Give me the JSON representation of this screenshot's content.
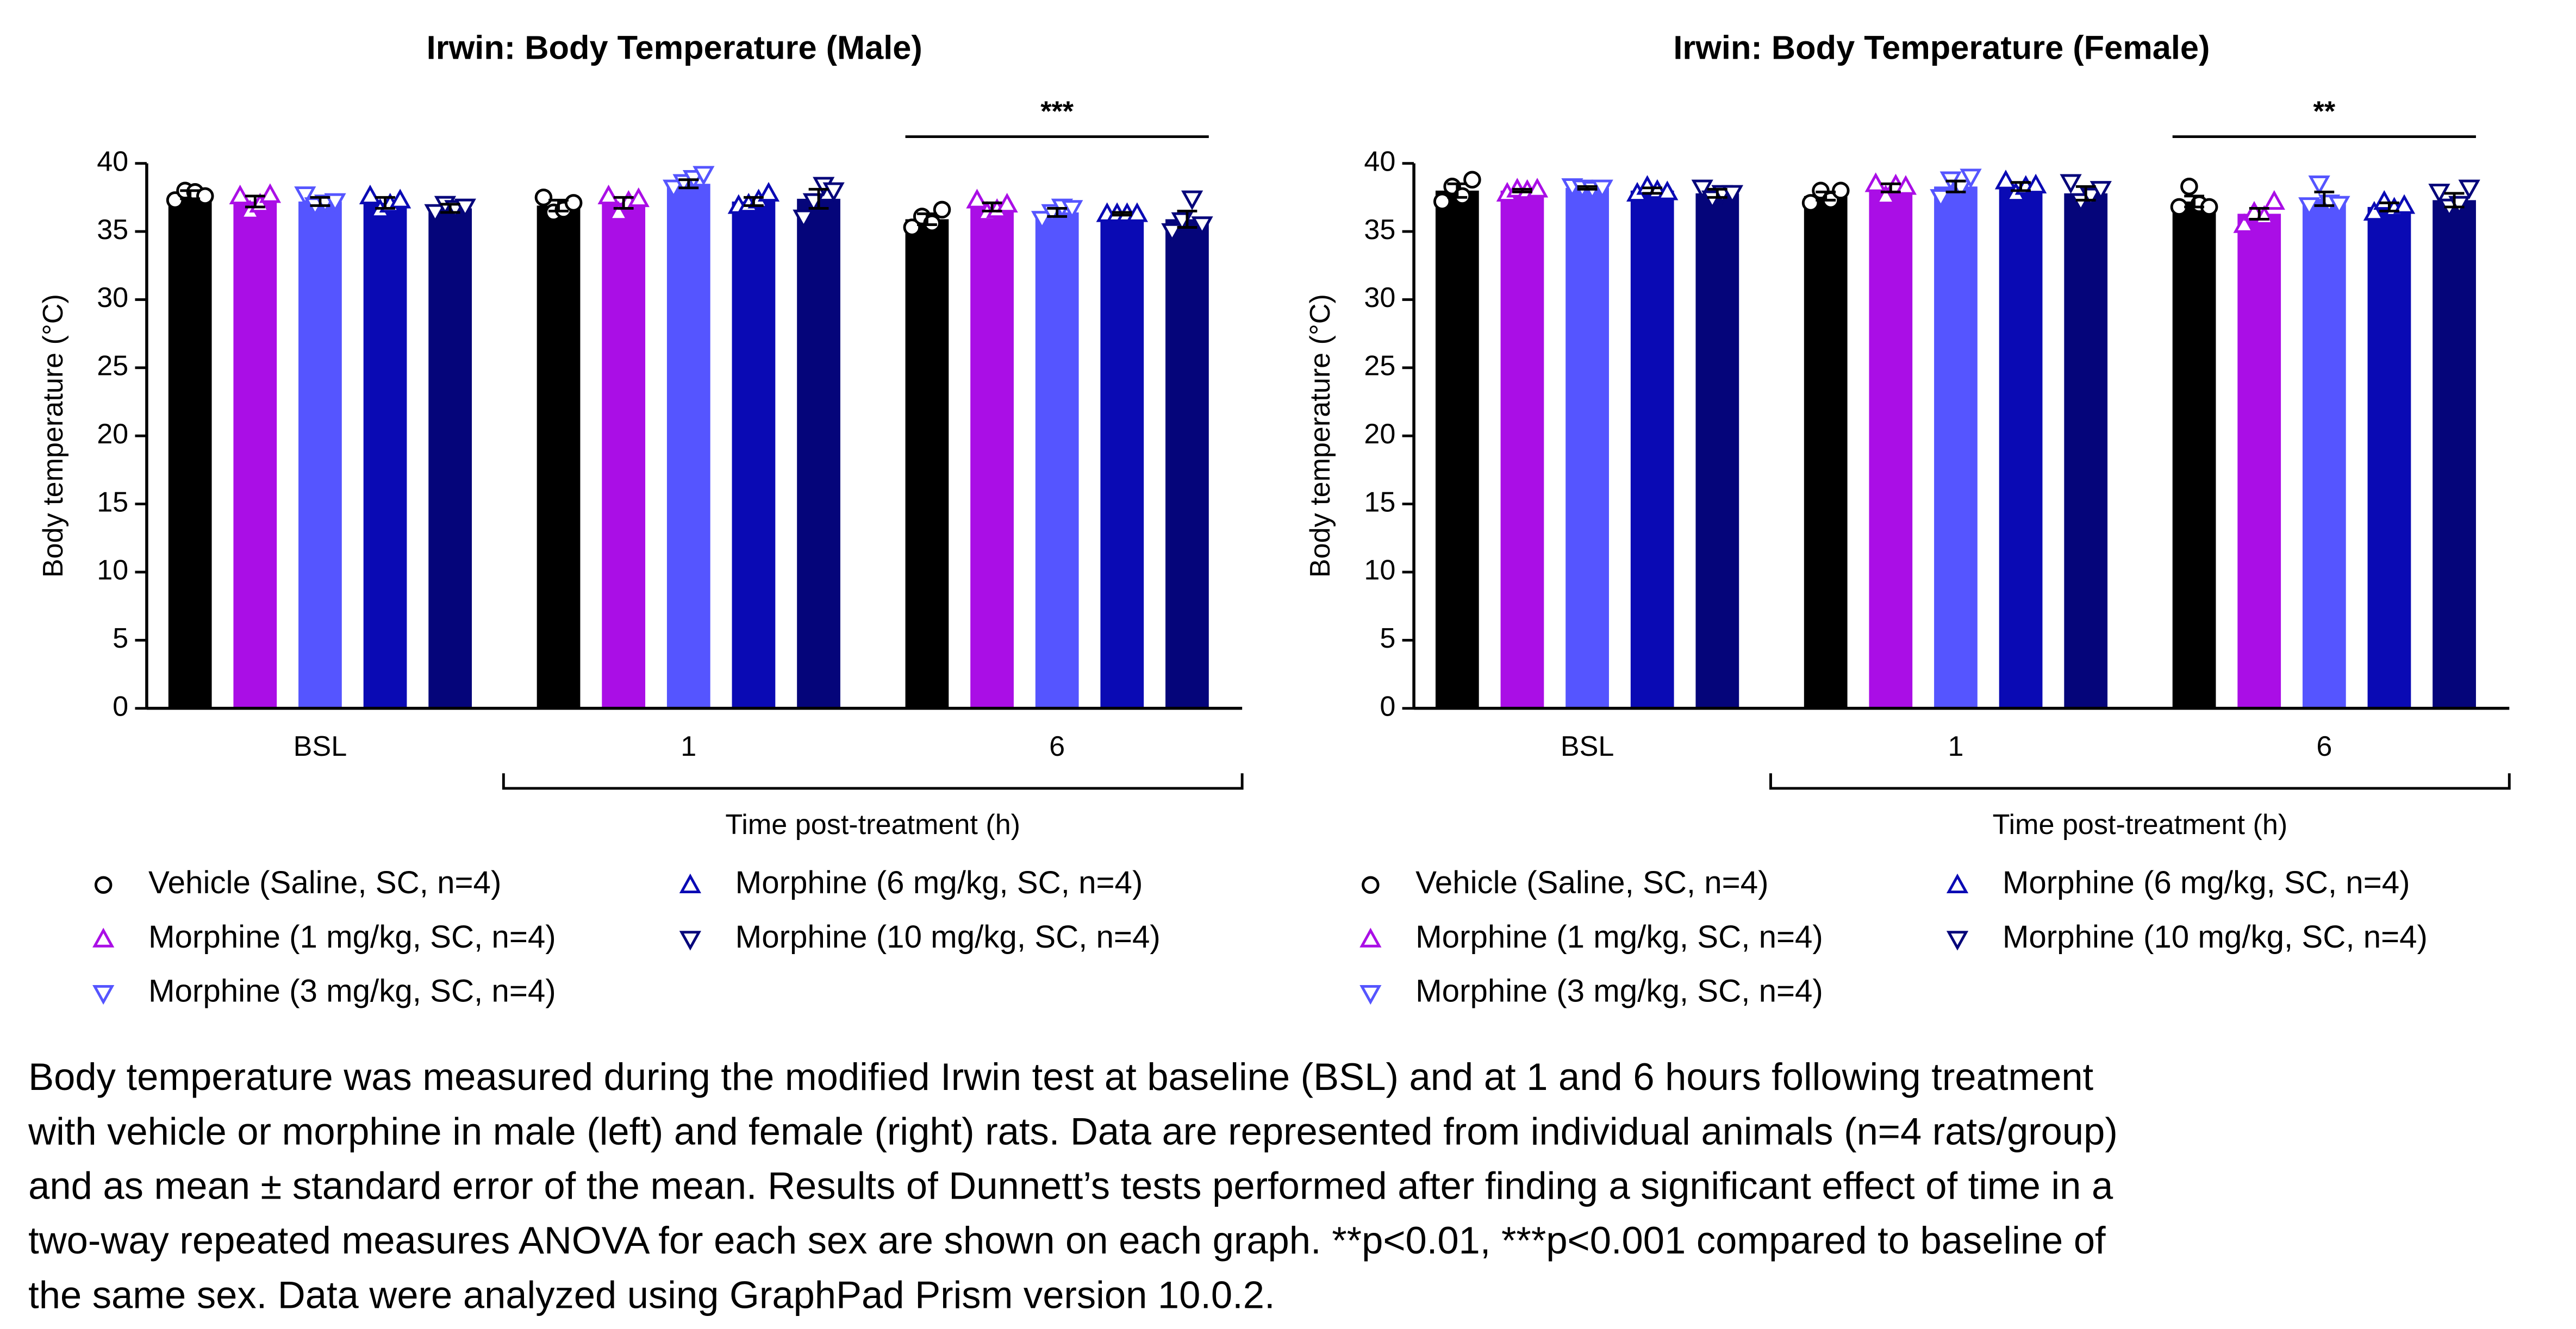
{
  "chart_data": [
    {
      "type": "bar",
      "title": "Irwin: Body Temperature (Male)",
      "x_label": "Time post-treatment (h)",
      "y_label": "Body temperature (°C)",
      "categories": [
        "BSL",
        "1",
        "6"
      ],
      "ylim": [
        0,
        40
      ],
      "yticks": [
        0,
        5,
        10,
        15,
        20,
        25,
        30,
        35,
        40
      ],
      "significance": [
        {
          "text": "***",
          "category": "6"
        }
      ],
      "series": [
        {
          "name": "Vehicle (Saline, SC, n=4)",
          "color": "#000000",
          "marker": "circle",
          "values": [
            37.7,
            36.9,
            35.9
          ],
          "errors": [
            0.3,
            0.4,
            0.4
          ],
          "points": [
            [
              37.3,
              38.0,
              37.9,
              37.6
            ],
            [
              37.5,
              36.4,
              36.6,
              37.1
            ],
            [
              35.3,
              36.1,
              35.6,
              36.6
            ]
          ]
        },
        {
          "name": "Morphine (1 mg/kg, SC, n=4)",
          "color": "#aa0ee6",
          "marker": "triangle-up",
          "values": [
            37.2,
            37.1,
            36.8
          ],
          "errors": [
            0.4,
            0.4,
            0.3
          ],
          "points": [
            [
              37.6,
              36.5,
              37.0,
              37.7
            ],
            [
              37.6,
              36.4,
              37.2,
              37.4
            ],
            [
              37.3,
              36.4,
              36.6,
              37.0
            ]
          ]
        },
        {
          "name": "Morphine (3 mg/kg, SC, n=4)",
          "color": "#5555ff",
          "marker": "triangle-down",
          "values": [
            37.2,
            38.5,
            36.4
          ],
          "errors": [
            0.3,
            0.3,
            0.3
          ],
          "points": [
            [
              37.7,
              36.9,
              37.1,
              37.2
            ],
            [
              38.2,
              38.6,
              38.9,
              39.2
            ],
            [
              35.9,
              36.4,
              36.8,
              36.7
            ]
          ]
        },
        {
          "name": "Morphine (6 mg/kg, SC, n=4)",
          "color": "#0a0ab4",
          "marker": "triangle-up",
          "values": [
            37.1,
            37.2,
            36.3
          ],
          "errors": [
            0.4,
            0.3,
            0.1
          ],
          "points": [
            [
              37.6,
              36.6,
              37.0,
              37.3
            ],
            [
              36.9,
              37.0,
              37.3,
              37.8
            ],
            [
              36.3,
              36.3,
              36.3,
              36.3
            ]
          ]
        },
        {
          "name": "Morphine (10 mg/kg, SC, n=4)",
          "color": "#05057a",
          "marker": "triangle-down",
          "values": [
            36.7,
            37.4,
            35.9
          ],
          "errors": [
            0.3,
            0.7,
            0.6
          ],
          "points": [
            [
              36.4,
              37.0,
              36.7,
              36.8
            ],
            [
              36.0,
              37.2,
              38.4,
              38.0
            ],
            [
              35.0,
              35.8,
              37.4,
              35.5
            ]
          ]
        }
      ]
    },
    {
      "type": "bar",
      "title": "Irwin: Body Temperature (Female)",
      "x_label": "Time post-treatment (h)",
      "y_label": "Body temperature (°C)",
      "categories": [
        "BSL",
        "1",
        "6"
      ],
      "ylim": [
        0,
        40
      ],
      "yticks": [
        0,
        5,
        10,
        15,
        20,
        25,
        30,
        35,
        40
      ],
      "significance": [
        {
          "text": "**",
          "category": "6"
        }
      ],
      "series": [
        {
          "name": "Vehicle (Saline, SC, n=4)",
          "color": "#000000",
          "marker": "circle",
          "values": [
            38.0,
            37.6,
            37.2
          ],
          "errors": [
            0.5,
            0.3,
            0.4
          ],
          "points": [
            [
              37.2,
              38.3,
              37.6,
              38.8
            ],
            [
              37.1,
              38.0,
              37.3,
              38.0
            ],
            [
              36.8,
              38.3,
              37.0,
              36.8
            ]
          ]
        },
        {
          "name": "Morphine (1 mg/kg, SC, n=4)",
          "color": "#aa0ee6",
          "marker": "triangle-up",
          "values": [
            38.0,
            38.2,
            36.3
          ],
          "errors": [
            0.1,
            0.3,
            0.4
          ],
          "points": [
            [
              37.8,
              38.1,
              38.0,
              38.1
            ],
            [
              38.5,
              37.6,
              38.4,
              38.3
            ],
            [
              35.5,
              36.4,
              36.1,
              37.2
            ]
          ]
        },
        {
          "name": "Morphine (3 mg/kg, SC, n=4)",
          "color": "#5555ff",
          "marker": "triangle-down",
          "values": [
            38.2,
            38.3,
            37.4
          ],
          "errors": [
            0.1,
            0.4,
            0.5
          ],
          "points": [
            [
              38.3,
              38.2,
              38.1,
              38.2
            ],
            [
              37.5,
              38.8,
              38.2,
              39.0
            ],
            [
              36.9,
              38.5,
              37.1,
              37.0
            ]
          ]
        },
        {
          "name": "Morphine (6 mg/kg, SC, n=4)",
          "color": "#0a0ab4",
          "marker": "triangle-up",
          "values": [
            38.0,
            38.3,
            36.8
          ],
          "errors": [
            0.2,
            0.3,
            0.3
          ],
          "points": [
            [
              37.8,
              38.3,
              38.0,
              37.9
            ],
            [
              38.7,
              37.8,
              38.3,
              38.4
            ],
            [
              36.4,
              37.2,
              36.7,
              36.9
            ]
          ]
        },
        {
          "name": "Morphine (10 mg/kg, SC, n=4)",
          "color": "#05057a",
          "marker": "triangle-down",
          "values": [
            37.8,
            37.8,
            37.3
          ],
          "errors": [
            0.3,
            0.5,
            0.5
          ],
          "points": [
            [
              38.2,
              37.4,
              37.8,
              37.8
            ],
            [
              38.6,
              37.2,
              37.6,
              38.1
            ],
            [
              37.9,
              36.8,
              37.0,
              38.2
            ]
          ]
        }
      ]
    }
  ],
  "caption": [
    "Body temperature was measured during the modified Irwin test at baseline (BSL) and at 1 and 6 hours following treatment",
    "with vehicle or morphine in male (left) and female (right) rats. Data are represented from individual animals (n=4 rats/group)",
    "and as mean ± standard error of the mean. Results of Dunnett’s tests performed after finding a significant effect of time in a",
    "two-way repeated measures ANOVA for each sex are shown on each graph. **p<0.01, ***p<0.001 compared to baseline of",
    "the same sex. Data were analyzed using GraphPad Prism version 10.0.2."
  ]
}
